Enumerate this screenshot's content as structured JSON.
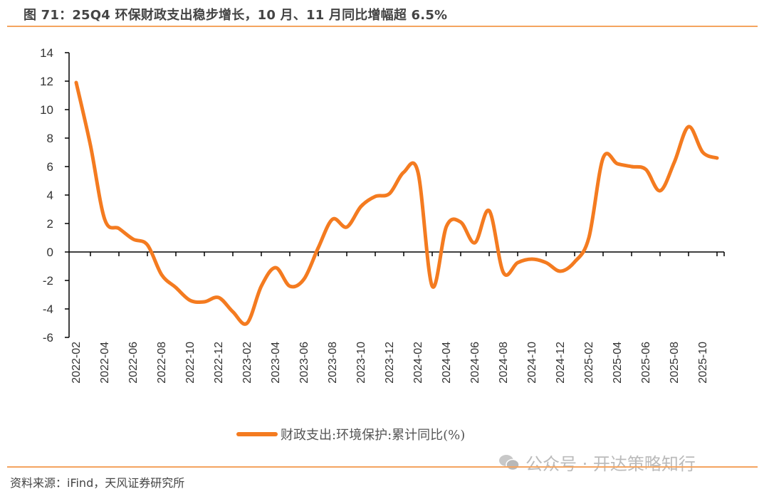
{
  "title": "图 71：25Q4 环保财政支出稳步增长，10 月、11 月同比增幅超 6.5%",
  "source": "资料来源：iFind，天风证券研究所",
  "watermark": "公众号 · 开达策略知行",
  "colors": {
    "series": "#F47B20",
    "rule": "#F4A460",
    "axis": "#000000"
  },
  "chart_data": {
    "type": "line",
    "title": "",
    "xlabel": "",
    "ylabel": "",
    "ylim": [
      -6,
      14
    ],
    "yticks": [
      14,
      12,
      10,
      8,
      6,
      4,
      2,
      0,
      -2,
      -4,
      -6
    ],
    "grid": false,
    "legend": "bottom",
    "x": [
      "2022-02",
      "2022-03",
      "2022-04",
      "2022-05",
      "2022-06",
      "2022-07",
      "2022-08",
      "2022-09",
      "2022-10",
      "2022-11",
      "2022-12",
      "2023-01",
      "2023-02",
      "2023-03",
      "2023-04",
      "2023-05",
      "2023-06",
      "2023-07",
      "2023-08",
      "2023-09",
      "2023-10",
      "2023-11",
      "2023-12",
      "2024-01",
      "2024-02",
      "2024-03",
      "2024-04",
      "2024-05",
      "2024-06",
      "2024-07",
      "2024-08",
      "2024-09",
      "2024-10",
      "2024-11",
      "2024-12",
      "2025-01",
      "2025-02",
      "2025-03",
      "2025-04",
      "2025-05",
      "2025-06",
      "2025-07",
      "2025-08",
      "2025-09",
      "2025-10",
      "2025-11"
    ],
    "xtick_labels": [
      "2022-02",
      "2022-04",
      "2022-06",
      "2022-08",
      "2022-10",
      "2022-12",
      "2023-02",
      "2023-04",
      "2023-06",
      "2023-08",
      "2023-10",
      "2023-12",
      "2024-02",
      "2024-04",
      "2024-06",
      "2024-08",
      "2024-10",
      "2024-12",
      "2025-02",
      "2025-04",
      "2025-06",
      "2025-08",
      "2025-10"
    ],
    "series": [
      {
        "name": "财政支出:环境保护:累计同比(%)",
        "values": [
          11.9,
          7.5,
          2.3,
          1.65,
          0.9,
          0.5,
          -1.6,
          -2.5,
          -3.4,
          -3.5,
          -3.2,
          -4.2,
          -5.0,
          -2.4,
          -1.1,
          -2.4,
          -1.9,
          0.3,
          2.3,
          1.75,
          3.2,
          3.9,
          4.1,
          5.6,
          5.6,
          -2.4,
          1.8,
          2.1,
          0.65,
          2.9,
          -1.45,
          -0.75,
          -0.5,
          -0.75,
          -1.35,
          -0.7,
          1.0,
          6.6,
          6.2,
          6.0,
          5.8,
          4.3,
          6.3,
          8.8,
          7.0,
          6.6
        ]
      }
    ]
  }
}
